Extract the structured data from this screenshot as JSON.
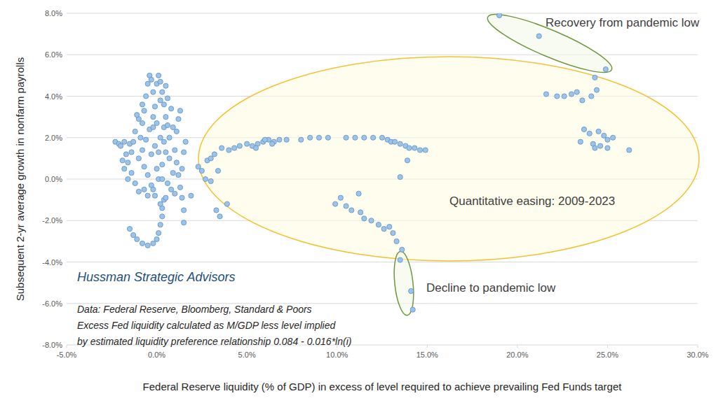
{
  "chart_data": {
    "type": "scatter",
    "x_label": "Federal Reserve liquidity (% of GDP) in excess of level required to achieve prevailing Fed Funds target",
    "y_label": "Subsequent 2-yr average growth in nonfarm payrolls",
    "annotations": [
      "Recovery from pandemic low",
      "Quantitative easing: 2009-2023",
      "Decline to pandemic low",
      "Hussman Strategic Advisors",
      "Data: Federal Reserve, Bloomberg, Standard & Poors",
      "Excess Fed liquidity calculated as M/GDP less level implied",
      "by estimated liquidity preference relationship 0.084 - 0.016*ln(i)"
    ],
    "color": "#9dc3e6",
    "marker": "circle",
    "grid": true,
    "xlim": [
      -5,
      30
    ],
    "ylim": [
      -8,
      8
    ],
    "xticks": [
      {
        "value": -5,
        "label": "-5.0%"
      },
      {
        "value": 0,
        "label": "0.0%"
      },
      {
        "value": 5,
        "label": "5.0%"
      },
      {
        "value": 10,
        "label": "10.0%"
      },
      {
        "value": 15,
        "label": "15.0%"
      },
      {
        "value": 20,
        "label": "20.0%"
      },
      {
        "value": 25,
        "label": "25.0%"
      },
      {
        "value": 30,
        "label": "30.0%"
      }
    ],
    "yticks": [
      {
        "value": -8,
        "label": "-8.0%"
      },
      {
        "value": -6,
        "label": "-6.0%"
      },
      {
        "value": -4,
        "label": "-4.0%"
      },
      {
        "value": -2,
        "label": "-2.0%"
      },
      {
        "value": 0,
        "label": "0.0%"
      },
      {
        "value": 2,
        "label": "2.0%"
      },
      {
        "value": 4,
        "label": "4.0%"
      },
      {
        "value": 6,
        "label": "6.0%"
      },
      {
        "value": 8,
        "label": "8.0%"
      }
    ],
    "x": [
      2.3,
      2.5,
      2.8,
      3.0,
      3.2,
      3.6,
      4.0,
      4.3,
      4.6,
      5.0,
      5.3,
      5.6,
      5.9,
      6.2,
      6.5,
      6.8,
      7.2,
      8.0,
      8.5,
      9.0,
      9.5,
      10.5,
      11.0,
      11.5,
      12.0,
      12.5,
      12.8,
      13.0,
      13.2,
      13.5,
      13.8,
      14.0,
      14.3,
      14.6,
      14.9,
      6.0,
      6.4,
      5.5,
      3.4,
      2.7,
      3.0,
      3.3,
      3.5,
      3.9,
      1.9,
      9.9,
      10.2,
      10.5,
      10.8,
      11.2,
      11.3,
      11.5,
      11.9,
      12.3,
      12.6,
      12.9,
      13.1,
      13.3,
      13.6,
      13.5,
      14.1,
      14.2,
      13.5,
      13.9,
      21.6,
      22.2,
      22.6,
      23.0,
      23.3,
      23.6,
      24.1,
      24.4,
      24.3,
      24.9,
      21.2,
      19.0,
      23.5,
      23.7,
      24.0,
      24.2,
      24.5,
      24.8,
      25.0,
      25.3,
      24.6,
      25.0,
      26.2,
      24.3,
      -2.3,
      -2.1,
      -2.0,
      -1.8,
      -1.5,
      -1.3,
      -1.6,
      -1.4,
      -1.2,
      -1.0,
      -1.5,
      -1.3,
      -1.1,
      -0.8,
      -0.5,
      -0.2,
      0.0,
      0.1,
      0.2,
      0.3,
      0.3,
      0.4,
      -0.9,
      -0.8,
      -0.7,
      -0.6,
      -0.5,
      -0.4,
      -0.3,
      -0.2,
      -0.1,
      0.0,
      0.1,
      0.2,
      0.3,
      0.4,
      0.5,
      0.5,
      0.6,
      0.4,
      0.2,
      0.0,
      -0.2,
      -0.4,
      -0.6,
      -0.8,
      -1.0,
      -0.7,
      -0.5,
      -0.3,
      -0.1,
      0.1,
      0.3,
      0.5,
      0.7,
      0.9,
      1.0,
      1.1,
      1.2,
      1.3,
      1.4,
      1.5,
      1.5,
      1.6,
      1.5,
      1.3,
      1.2,
      0.8,
      0.7,
      0.6,
      0.8,
      1.0,
      0.9,
      -0.3,
      -0.1,
      0.1,
      0.3,
      -0.5,
      -0.7,
      -1.9,
      -1.8,
      -1.6,
      -1.4,
      -1.2,
      -1.0,
      -0.8,
      -1.1,
      0.2,
      -0.2,
      0.6,
      0.4,
      0.0,
      -0.2,
      0.2,
      0.5,
      1.1,
      1.4,
      -1.7
    ],
    "values": [
      0.6,
      0.4,
      0.9,
      1.0,
      1.2,
      1.5,
      1.4,
      1.5,
      1.6,
      1.7,
      1.6,
      1.7,
      1.8,
      1.9,
      1.8,
      1.9,
      1.9,
      1.9,
      2.0,
      2.0,
      2.0,
      2.0,
      2.0,
      2.0,
      2.0,
      2.0,
      1.9,
      1.8,
      1.8,
      1.7,
      1.6,
      1.5,
      1.5,
      1.4,
      1.4,
      1.9,
      1.7,
      1.5,
      0.4,
      0.0,
      -0.1,
      -1.5,
      -1.8,
      -1.2,
      -0.8,
      -1.2,
      -0.9,
      -1.3,
      -1.5,
      -0.7,
      -1.6,
      -1.9,
      -2.0,
      -2.2,
      -2.4,
      -2.3,
      -2.6,
      -3.0,
      -3.4,
      -3.9,
      -5.4,
      -6.3,
      0.1,
      0.9,
      4.1,
      4.0,
      4.0,
      4.1,
      4.2,
      3.8,
      4.0,
      4.3,
      4.9,
      5.3,
      6.9,
      7.9,
      1.8,
      2.4,
      2.2,
      1.7,
      2.3,
      2.1,
      1.9,
      2.0,
      1.6,
      1.5,
      1.4,
      1.5,
      1.8,
      1.7,
      1.6,
      1.8,
      1.7,
      1.8,
      0.8,
      0.3,
      -0.2,
      -0.6,
      -2.4,
      -2.7,
      -2.9,
      -3.1,
      -3.2,
      -3.1,
      -2.9,
      -2.6,
      -2.2,
      -1.8,
      -1.4,
      -1.0,
      2.0,
      2.7,
      3.3,
      4.0,
      4.6,
      5.0,
      4.8,
      4.2,
      3.5,
      4.6,
      5.0,
      4.7,
      4.2,
      3.6,
      3.0,
      4.5,
      3.9,
      2.5,
      2.0,
      2.7,
      3.0,
      2.4,
      1.9,
      1.4,
      1.0,
      0.6,
      0.2,
      -0.3,
      -0.8,
      0.0,
      0.7,
      1.3,
      2.0,
      2.5,
      1.4,
      0.8,
      0.2,
      -0.4,
      -0.9,
      -1.5,
      -2.1,
      1.8,
      1.3,
      3.3,
      2.9,
      3.4,
      1.0,
      -0.2,
      -0.5,
      -0.7,
      0.3,
      1.2,
      1.6,
      1.3,
      0.0,
      -0.8,
      -0.5,
      0.9,
      0.5,
      0.0,
      1.3,
      2.3,
      2.9,
      3.6,
      3.1,
      3.8,
      2.5,
      2.6,
      1.8,
      0.5,
      -0.5,
      -1.2,
      -0.9,
      2.3,
      0.5,
      1.2
    ]
  }
}
